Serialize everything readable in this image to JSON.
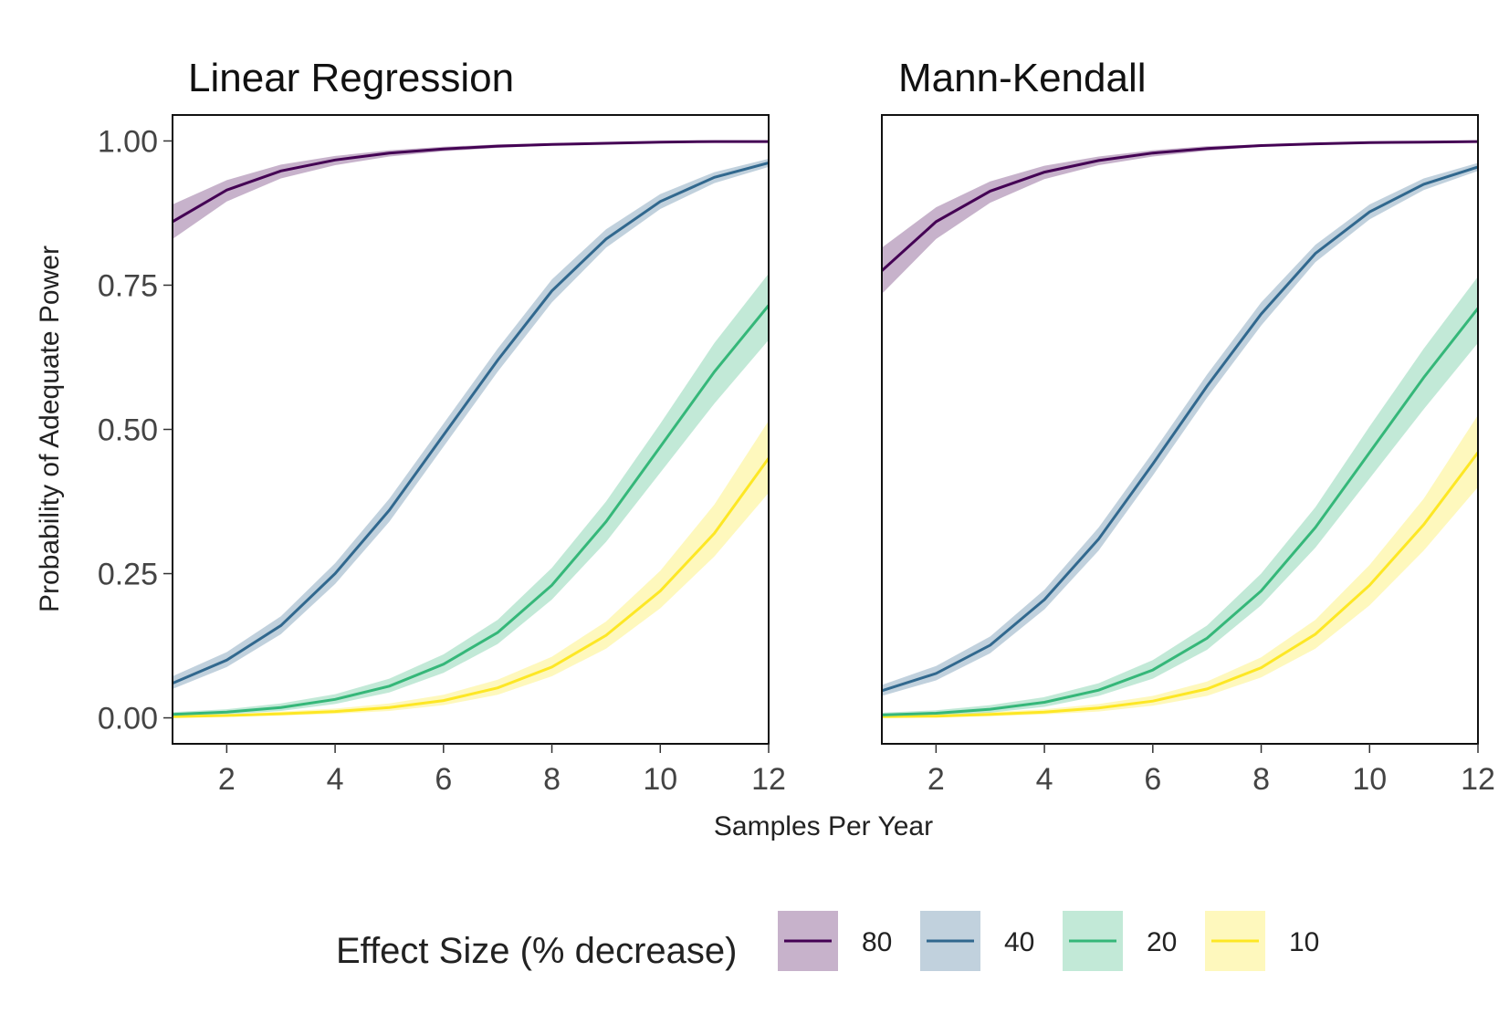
{
  "chart_data": {
    "type": "line",
    "ylabel": "Probability of Adequate Power",
    "xlabel": "Samples Per Year",
    "xlim": [
      1,
      12
    ],
    "ylim": [
      -0.045,
      1.045
    ],
    "x_ticks": [
      2,
      4,
      6,
      8,
      10,
      12
    ],
    "y_ticks": [
      "0.00",
      "0.25",
      "0.50",
      "0.75",
      "1.00"
    ],
    "y_tick_values": [
      0,
      0.25,
      0.5,
      0.75,
      1.0
    ],
    "grid": false,
    "legend": {
      "title": "Effect Size (% decrease)",
      "position": "bottom",
      "entries": [
        "80",
        "40",
        "20",
        "10"
      ]
    },
    "x": [
      1,
      2,
      3,
      4,
      5,
      6,
      7,
      8,
      9,
      10,
      11,
      12
    ],
    "panels": [
      {
        "title": "Linear Regression",
        "series": [
          {
            "name": "80",
            "color": "#440154",
            "values": [
              0.86,
              0.915,
              0.948,
              0.967,
              0.979,
              0.986,
              0.991,
              0.994,
              0.996,
              0.998,
              0.999,
              0.999
            ],
            "lower": [
              0.83,
              0.895,
              0.935,
              0.958,
              0.973,
              0.982,
              0.988,
              0.992,
              0.995,
              0.997,
              0.998,
              0.999
            ],
            "upper": [
              0.89,
              0.932,
              0.959,
              0.974,
              0.984,
              0.99,
              0.994,
              0.996,
              0.998,
              0.999,
              1.0,
              1.0
            ]
          },
          {
            "name": "40",
            "color": "#31688e",
            "values": [
              0.06,
              0.1,
              0.16,
              0.25,
              0.36,
              0.49,
              0.62,
              0.74,
              0.83,
              0.895,
              0.937,
              0.962
            ],
            "lower": [
              0.05,
              0.088,
              0.145,
              0.232,
              0.34,
              0.47,
              0.6,
              0.72,
              0.815,
              0.882,
              0.927,
              0.955
            ],
            "upper": [
              0.072,
              0.114,
              0.176,
              0.268,
              0.38,
              0.51,
              0.64,
              0.76,
              0.847,
              0.908,
              0.946,
              0.969
            ]
          },
          {
            "name": "20",
            "color": "#35b779",
            "values": [
              0.006,
              0.01,
              0.018,
              0.032,
              0.055,
              0.093,
              0.148,
              0.23,
              0.34,
              0.47,
              0.6,
              0.715
            ],
            "lower": [
              0.003,
              0.006,
              0.012,
              0.024,
              0.044,
              0.078,
              0.128,
              0.205,
              0.305,
              0.425,
              0.545,
              0.655
            ],
            "upper": [
              0.01,
              0.015,
              0.025,
              0.041,
              0.068,
              0.11,
              0.17,
              0.26,
              0.375,
              0.51,
              0.65,
              0.77
            ]
          },
          {
            "name": "10",
            "color": "#fde725",
            "values": [
              0.002,
              0.004,
              0.007,
              0.011,
              0.018,
              0.03,
              0.052,
              0.088,
              0.143,
              0.22,
              0.32,
              0.45
            ],
            "lower": [
              0.001,
              0.002,
              0.004,
              0.007,
              0.012,
              0.022,
              0.04,
              0.072,
              0.12,
              0.19,
              0.28,
              0.39
            ],
            "upper": [
              0.004,
              0.006,
              0.011,
              0.016,
              0.025,
              0.04,
              0.066,
              0.106,
              0.167,
              0.255,
              0.37,
              0.515
            ]
          }
        ]
      },
      {
        "title": "Mann-Kendall",
        "series": [
          {
            "name": "80",
            "color": "#440154",
            "values": [
              0.775,
              0.86,
              0.913,
              0.946,
              0.966,
              0.979,
              0.987,
              0.992,
              0.995,
              0.997,
              0.998,
              0.999
            ],
            "lower": [
              0.735,
              0.83,
              0.893,
              0.934,
              0.958,
              0.973,
              0.983,
              0.99,
              0.994,
              0.996,
              0.997,
              0.998
            ],
            "upper": [
              0.815,
              0.885,
              0.93,
              0.957,
              0.973,
              0.984,
              0.991,
              0.994,
              0.996,
              0.998,
              0.999,
              1.0
            ]
          },
          {
            "name": "40",
            "color": "#31688e",
            "values": [
              0.047,
              0.077,
              0.126,
              0.205,
              0.31,
              0.44,
              0.575,
              0.7,
              0.805,
              0.877,
              0.925,
              0.955
            ],
            "lower": [
              0.038,
              0.065,
              0.112,
              0.188,
              0.29,
              0.42,
              0.555,
              0.68,
              0.79,
              0.864,
              0.915,
              0.948
            ],
            "upper": [
              0.057,
              0.09,
              0.141,
              0.222,
              0.33,
              0.46,
              0.595,
              0.72,
              0.82,
              0.89,
              0.935,
              0.962
            ]
          },
          {
            "name": "20",
            "color": "#35b779",
            "values": [
              0.005,
              0.008,
              0.015,
              0.027,
              0.048,
              0.083,
              0.138,
              0.22,
              0.33,
              0.46,
              0.59,
              0.71
            ],
            "lower": [
              0.002,
              0.004,
              0.009,
              0.019,
              0.038,
              0.068,
              0.118,
              0.195,
              0.295,
              0.415,
              0.535,
              0.65
            ],
            "upper": [
              0.009,
              0.013,
              0.022,
              0.036,
              0.06,
              0.1,
              0.16,
              0.25,
              0.365,
              0.505,
              0.64,
              0.765
            ]
          },
          {
            "name": "10",
            "color": "#fde725",
            "values": [
              0.002,
              0.003,
              0.006,
              0.01,
              0.017,
              0.029,
              0.05,
              0.087,
              0.145,
              0.23,
              0.335,
              0.46
            ],
            "lower": [
              0.001,
              0.001,
              0.003,
              0.006,
              0.011,
              0.021,
              0.038,
              0.07,
              0.12,
              0.195,
              0.29,
              0.4
            ],
            "upper": [
              0.004,
              0.006,
              0.01,
              0.015,
              0.024,
              0.038,
              0.063,
              0.105,
              0.17,
              0.265,
              0.38,
              0.525
            ]
          }
        ]
      }
    ]
  }
}
